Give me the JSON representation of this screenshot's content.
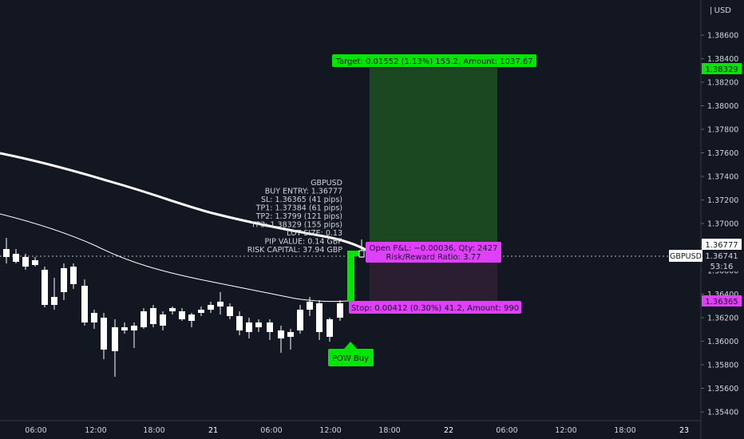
{
  "currency": "USD",
  "symbol": "GBPUSD",
  "countdown": "53:16",
  "price_axis": {
    "min": 1.354,
    "max": 1.388,
    "ticks": [
      "1.38600",
      "1.38400",
      "1.38200",
      "1.38000",
      "1.37800",
      "1.37600",
      "1.37400",
      "1.37200",
      "1.37000",
      "1.36800",
      "1.36600",
      "1.36400",
      "1.36200",
      "1.36000",
      "1.35800",
      "1.35600",
      "1.35400"
    ],
    "tick_values": [
      1.386,
      1.384,
      1.382,
      1.38,
      1.378,
      1.376,
      1.374,
      1.372,
      1.37,
      1.368,
      1.366,
      1.364,
      1.362,
      1.36,
      1.358,
      1.356,
      1.354
    ]
  },
  "time_axis": [
    "06:00",
    "12:00",
    "18:00",
    "21",
    "06:00",
    "12:00",
    "18:00",
    "22",
    "06:00",
    "12:00",
    "18:00",
    "23"
  ],
  "price_labels": {
    "target": "1.38329",
    "entry": "1.36777",
    "current": "1.36741",
    "stop": "1.36365"
  },
  "info": {
    "symbol": "GBPUSD",
    "entry": "BUY ENTRY: 1.36777",
    "sl": "SL: 1.36365 (41 pips)",
    "tp1": "TP1: 1.37384 (61 pips)",
    "tp2": "TP2: 1.3799 (121 pips)",
    "tp3": "TP3: 1.38329 (155 pips)",
    "lot": "LOT SIZE: 0.13",
    "pip": "PIP VALUE: 0.14 GBP",
    "risk": "RISK CAPITAL: 37.94 GBP"
  },
  "target_label": "Target: 0.01552 (1.13%) 155.2, Amount: 1037.67",
  "pnl_label": "Open P&L: −0.00036, Qty: 2427",
  "rr_label": "Risk/Reward Ratio: 3.77",
  "stop_label": "Stop: 0.00412 (0.30%) 41.2, Amount: 990",
  "signal_label": "POW Buy",
  "colors": {
    "background": "#131722",
    "bull": "#ffffff",
    "bear": "#ffffff",
    "target_zone": "#1b4a22",
    "stop_zone": "#2a1e30",
    "green": "#00e600",
    "magenta": "#e040fb",
    "axis_text": "#d1d4dc"
  }
}
